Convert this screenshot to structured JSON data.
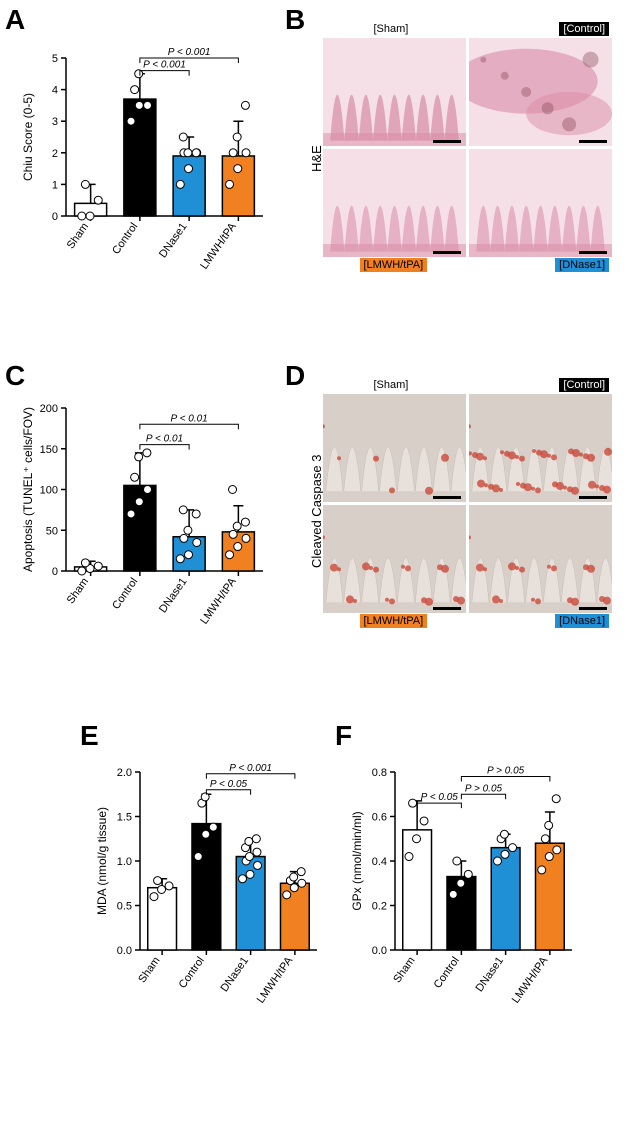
{
  "panels": {
    "A": {
      "label": "A"
    },
    "B": {
      "label": "B"
    },
    "C": {
      "label": "C"
    },
    "D": {
      "label": "D"
    },
    "E": {
      "label": "E"
    },
    "F": {
      "label": "F"
    }
  },
  "chartA": {
    "type": "bar-scatter",
    "ylabel": "Chiu Score (0-5)",
    "categories": [
      "Sham",
      "Control",
      "DNase1",
      "LMWH/tPA"
    ],
    "means": [
      0.4,
      3.7,
      1.9,
      1.9
    ],
    "max_err": [
      1.0,
      4.5,
      2.5,
      3.0
    ],
    "colors": [
      "#ffffff",
      "#000000",
      "#1f8fd6",
      "#f08020"
    ],
    "points": {
      "Sham": [
        0.0,
        0.0,
        0.5,
        1.0
      ],
      "Control": [
        3.0,
        3.5,
        3.5,
        4.0,
        4.5
      ],
      "DNase1": [
        1.0,
        1.5,
        2.0,
        2.0,
        2.0,
        2.0,
        2.5
      ],
      "LMWH/tPA": [
        1.0,
        1.5,
        2.0,
        2.0,
        2.5,
        3.5
      ]
    },
    "ylim": [
      0,
      5
    ],
    "ytick_step": 1,
    "pvals": [
      {
        "from": "Control",
        "to": "DNase1",
        "text": "P < 0.001",
        "y": 4.6
      },
      {
        "from": "Control",
        "to": "LMWH/tPA",
        "text": "P < 0.001",
        "y": 5.0
      }
    ]
  },
  "chartC": {
    "type": "bar-scatter",
    "ylabel": "Apoptosis (TUNEL⁺ cells/FOV)",
    "categories": [
      "Sham",
      "Control",
      "DNase1",
      "LMWH/tPA"
    ],
    "means": [
      5,
      105,
      42,
      48
    ],
    "max_err": [
      12,
      145,
      75,
      80
    ],
    "colors": [
      "#ffffff",
      "#000000",
      "#1f8fd6",
      "#f08020"
    ],
    "points": {
      "Sham": [
        0,
        3,
        6,
        10
      ],
      "Control": [
        70,
        85,
        100,
        115,
        140,
        145
      ],
      "DNase1": [
        15,
        20,
        35,
        40,
        50,
        70,
        75
      ],
      "LMWH/tPA": [
        20,
        30,
        40,
        45,
        55,
        60,
        100
      ]
    },
    "ylim": [
      0,
      200
    ],
    "ytick_step": 50,
    "pvals": [
      {
        "from": "Control",
        "to": "DNase1",
        "text": "P < 0.01",
        "y": 155
      },
      {
        "from": "Control",
        "to": "LMWH/tPA",
        "text": "P < 0.01",
        "y": 180
      }
    ]
  },
  "chartE": {
    "type": "bar-scatter",
    "ylabel": "MDA (nmol/g tissue)",
    "categories": [
      "Sham",
      "Control",
      "DNase1",
      "LMWH/tPA"
    ],
    "means": [
      0.7,
      1.42,
      1.05,
      0.75
    ],
    "max_err": [
      0.8,
      1.75,
      1.25,
      0.88
    ],
    "colors": [
      "#ffffff",
      "#000000",
      "#1f8fd6",
      "#f08020"
    ],
    "points": {
      "Sham": [
        0.6,
        0.68,
        0.72,
        0.78
      ],
      "Control": [
        1.05,
        1.3,
        1.38,
        1.65,
        1.72
      ],
      "DNase1": [
        0.8,
        0.85,
        0.95,
        1.0,
        1.05,
        1.1,
        1.15,
        1.22,
        1.25
      ],
      "LMWH/tPA": [
        0.62,
        0.7,
        0.75,
        0.78,
        0.82,
        0.88
      ]
    },
    "ylim": [
      0.0,
      2.0
    ],
    "ytick_step": 0.5,
    "pvals": [
      {
        "from": "Control",
        "to": "DNase1",
        "text": "P < 0.05",
        "y": 1.8
      },
      {
        "from": "Control",
        "to": "LMWH/tPA",
        "text": "P < 0.001",
        "y": 1.98
      }
    ]
  },
  "chartF": {
    "type": "bar-scatter",
    "ylabel": "GPx (nmol/min/ml)",
    "categories": [
      "Sham",
      "Control",
      "DNase1",
      "LMWH/tPA"
    ],
    "means": [
      0.54,
      0.33,
      0.46,
      0.48
    ],
    "max_err": [
      0.67,
      0.4,
      0.52,
      0.62
    ],
    "colors": [
      "#ffffff",
      "#000000",
      "#1f8fd6",
      "#f08020"
    ],
    "points": {
      "Sham": [
        0.42,
        0.5,
        0.58,
        0.66
      ],
      "Control": [
        0.25,
        0.3,
        0.34,
        0.4
      ],
      "DNase1": [
        0.4,
        0.43,
        0.46,
        0.5,
        0.52
      ],
      "LMWH/tPA": [
        0.36,
        0.42,
        0.45,
        0.5,
        0.56,
        0.68
      ]
    },
    "ylim": [
      0.0,
      0.8
    ],
    "ytick_step": 0.2,
    "pvals": [
      {
        "from": "Sham",
        "to": "Control",
        "text": "P < 0.05",
        "y": 0.66,
        "bracketSide": "left"
      },
      {
        "from": "Control",
        "to": "DNase1",
        "text": "P > 0.05",
        "y": 0.7
      },
      {
        "from": "Control",
        "to": "LMWH/tPA",
        "text": "P > 0.05",
        "y": 0.78
      }
    ]
  },
  "panelB": {
    "sideLabel": "H&E",
    "cells": [
      {
        "label": "[Sham]",
        "bg": "#ffffff",
        "fg": "#000000",
        "pos": "top-center",
        "tissue": "he-normal"
      },
      {
        "label": "[Control]",
        "bg": "#000000",
        "fg": "#ffffff",
        "pos": "top-right",
        "tissue": "he-damaged"
      },
      {
        "label": "[LMWH/tPA]",
        "bg": "#f08020",
        "fg": "#000000",
        "pos": "bottom-center",
        "tissue": "he-partial"
      },
      {
        "label": "[DNase1]",
        "bg": "#1f8fd6",
        "fg": "#000000",
        "pos": "bottom-right",
        "tissue": "he-partial"
      }
    ]
  },
  "panelD": {
    "sideLabel": "Cleaved Caspase 3",
    "cells": [
      {
        "label": "[Sham]",
        "bg": "#ffffff",
        "fg": "#000000",
        "pos": "top-center",
        "tissue": "cc3-low"
      },
      {
        "label": "[Control]",
        "bg": "#000000",
        "fg": "#ffffff",
        "pos": "top-right",
        "tissue": "cc3-high"
      },
      {
        "label": "[LMWH/tPA]",
        "bg": "#f08020",
        "fg": "#000000",
        "pos": "bottom-center",
        "tissue": "cc3-med"
      },
      {
        "label": "[DNase1]",
        "bg": "#1f8fd6",
        "fg": "#000000",
        "pos": "bottom-right",
        "tissue": "cc3-med"
      }
    ]
  },
  "colors": {
    "sham": "#ffffff",
    "control": "#000000",
    "dnase1": "#1f8fd6",
    "lmwh": "#f08020",
    "text": "#000000",
    "bg": "#ffffff",
    "he_stain": "#d98ba6",
    "he_light": "#f5e0e8",
    "cc3_stain": "#c94a3b",
    "cc3_bg": "#d8d0c8"
  }
}
